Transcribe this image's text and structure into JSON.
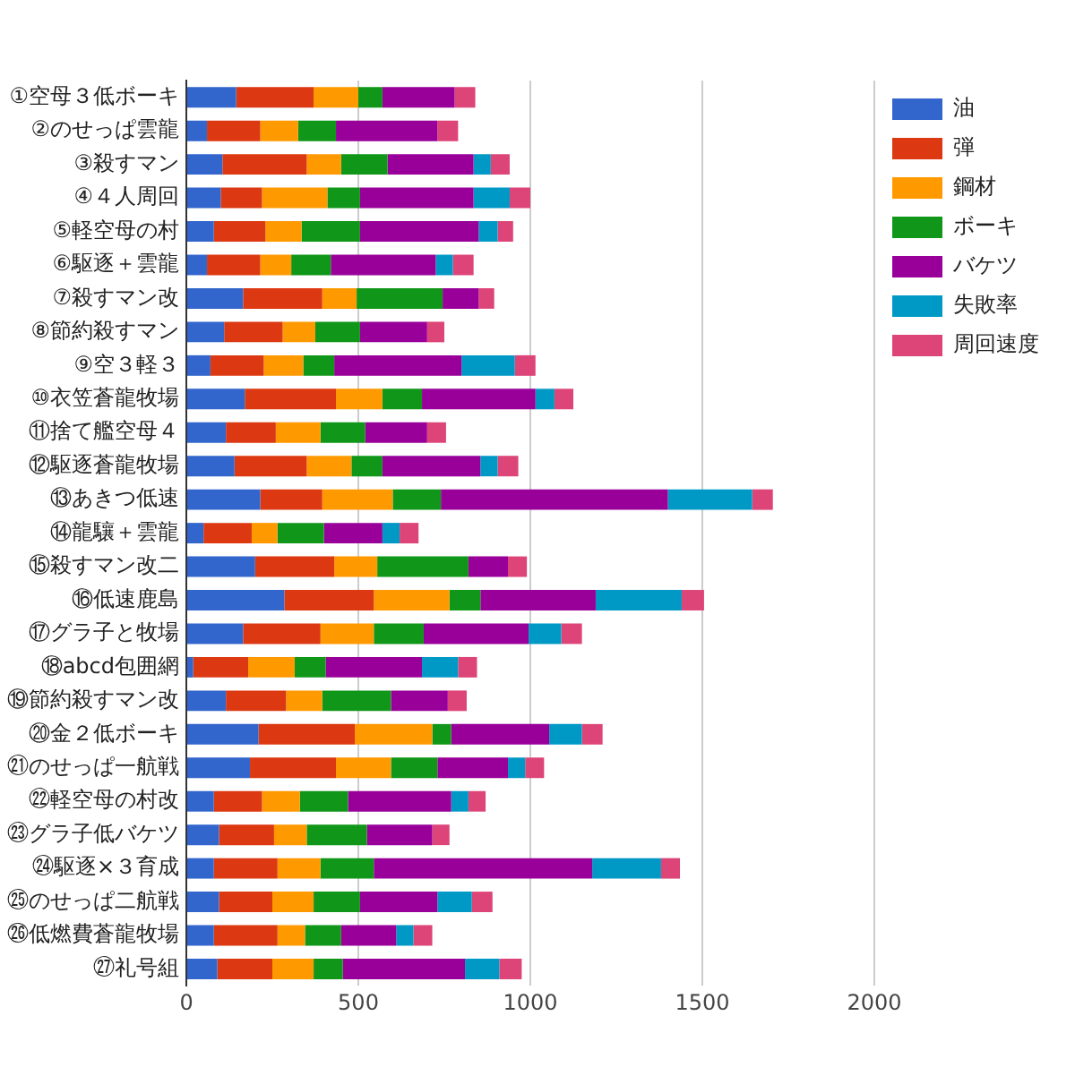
{
  "chart_data": {
    "type": "bar",
    "orientation": "horizontal",
    "stacked": true,
    "legend": "right",
    "grid": "x",
    "categories": [
      "①空母３低ボーキ",
      "②のせっぱ雲龍",
      "③殺すマン",
      "④４人周回",
      "⑤軽空母の村",
      "⑥駆逐＋雲龍",
      "⑦殺すマン改",
      "⑧節約殺すマン",
      "⑨空３軽３",
      "⑩衣笠蒼龍牧場",
      "⑪捨て艦空母４",
      "⑫駆逐蒼龍牧場",
      "⑬あきつ低速",
      "⑭龍驤＋雲龍",
      "⑮殺すマン改二",
      "⑯低速鹿島",
      "⑰グラ子と牧場",
      "⑱abcd包囲網",
      "⑲節約殺すマン改",
      "⑳金２低ボーキ",
      "㉑のせっぱ一航戦",
      "㉒軽空母の村改",
      "㉓グラ子低バケツ",
      "㉔駆逐×３育成",
      "㉕のせっぱ二航戦",
      "㉖低燃費蒼龍牧場",
      "㉗礼号組"
    ],
    "xlim": [
      0,
      2000
    ],
    "xticks": [
      0,
      500,
      1000,
      1500,
      2000
    ],
    "series": [
      {
        "name": "油",
        "color": "#3366cc",
        "values": [
          145,
          60,
          105,
          100,
          80,
          60,
          165,
          110,
          70,
          170,
          115,
          140,
          215,
          50,
          200,
          285,
          165,
          20,
          115,
          210,
          185,
          80,
          95,
          80,
          95,
          80,
          90
        ]
      },
      {
        "name": "弾",
        "color": "#dc3912",
        "values": [
          225,
          155,
          245,
          120,
          150,
          155,
          230,
          170,
          155,
          265,
          145,
          210,
          180,
          140,
          230,
          260,
          225,
          160,
          175,
          280,
          250,
          140,
          160,
          185,
          155,
          185,
          160
        ]
      },
      {
        "name": "鋼材",
        "color": "#ff9900",
        "values": [
          130,
          110,
          100,
          190,
          105,
          90,
          100,
          95,
          115,
          135,
          130,
          130,
          205,
          75,
          125,
          220,
          155,
          135,
          105,
          225,
          160,
          110,
          95,
          125,
          120,
          80,
          120
        ]
      },
      {
        "name": "ボーキ",
        "color": "#109618",
        "values": [
          70,
          110,
          135,
          95,
          170,
          115,
          250,
          130,
          90,
          115,
          130,
          90,
          140,
          135,
          265,
          90,
          145,
          90,
          200,
          55,
          135,
          140,
          175,
          155,
          135,
          105,
          85
        ]
      },
      {
        "name": "バケツ",
        "color": "#990099",
        "values": [
          210,
          295,
          250,
          330,
          345,
          305,
          105,
          195,
          370,
          330,
          180,
          285,
          660,
          170,
          115,
          335,
          305,
          280,
          165,
          285,
          205,
          300,
          190,
          635,
          225,
          160,
          355
        ]
      },
      {
        "name": "失敗率",
        "color": "#0099c6",
        "values": [
          0,
          0,
          50,
          105,
          55,
          50,
          0,
          0,
          155,
          55,
          0,
          50,
          245,
          50,
          0,
          250,
          95,
          105,
          0,
          95,
          50,
          50,
          0,
          200,
          100,
          50,
          100
        ]
      },
      {
        "name": "周回速度",
        "color": "#dd4477",
        "values": [
          60,
          60,
          55,
          60,
          45,
          60,
          45,
          50,
          60,
          55,
          55,
          60,
          60,
          55,
          55,
          65,
          60,
          55,
          55,
          60,
          55,
          50,
          50,
          55,
          60,
          55,
          65
        ]
      }
    ]
  }
}
